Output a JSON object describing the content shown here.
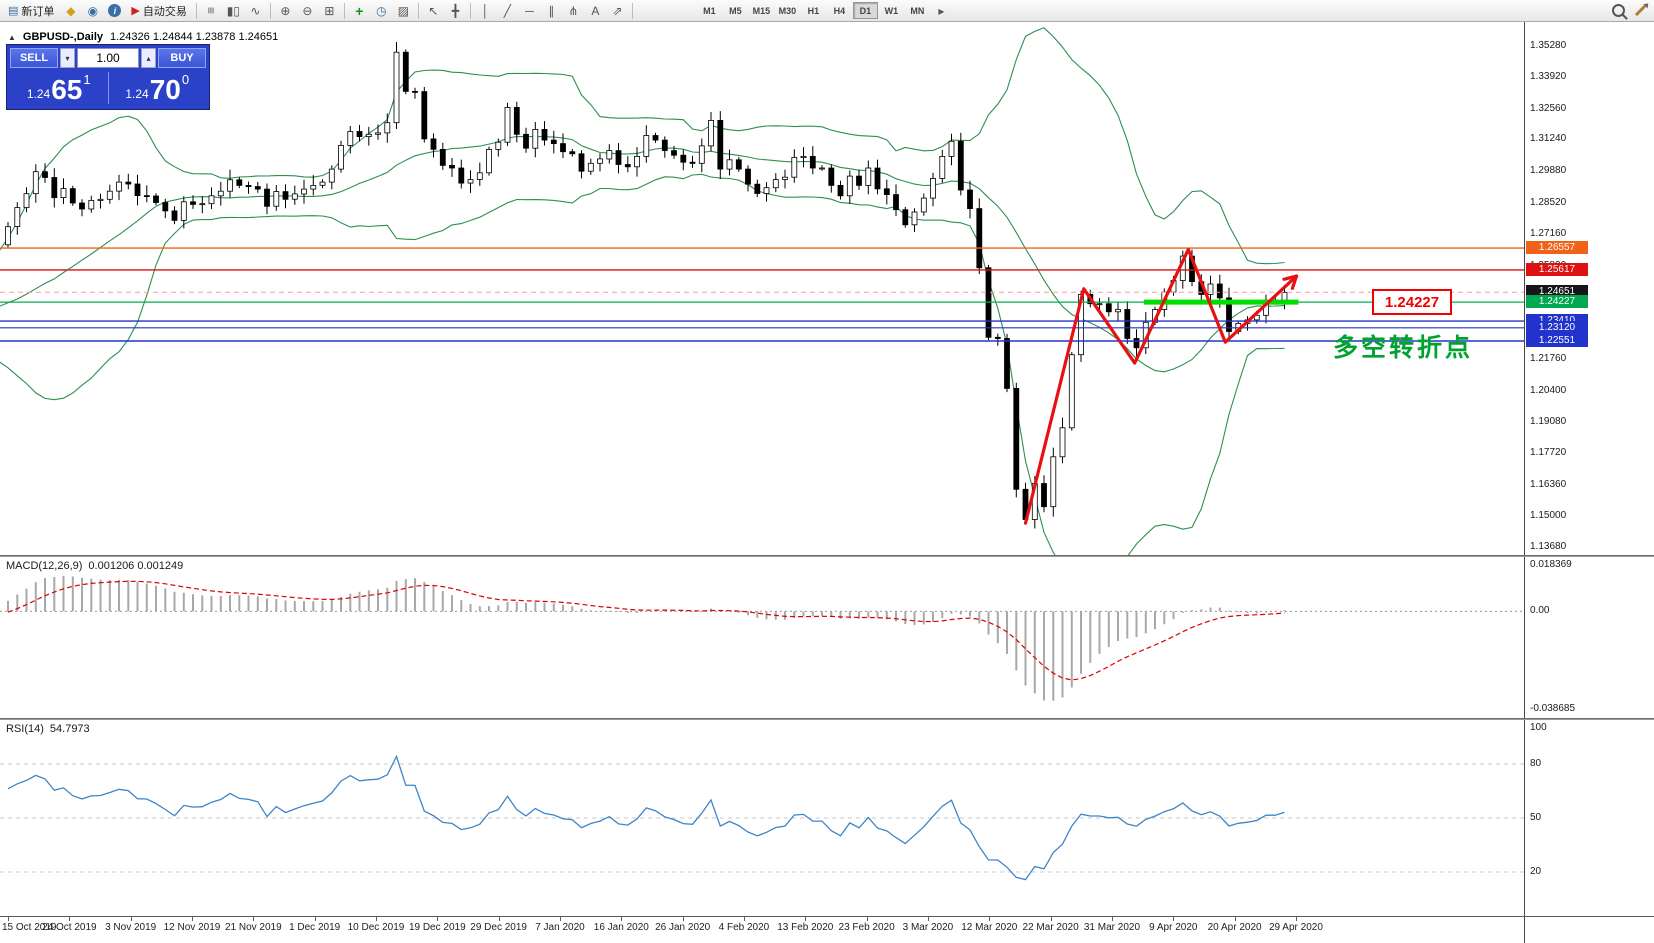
{
  "toolbar": {
    "new_order_label": "新订单",
    "auto_trading_label": "自动交易",
    "timeframes": [
      "M1",
      "M5",
      "M15",
      "M30",
      "H1",
      "H4",
      "D1",
      "W1",
      "MN"
    ],
    "active_timeframe": "D1",
    "icons": {
      "new_order": "▤",
      "market": "◆",
      "profile": "◉",
      "info": "i",
      "autotrade": "▶",
      "bars": "≡",
      "candles": "▮▯",
      "line": "∿",
      "zoom_in": "⊕",
      "zoom_out": "⊖",
      "tile": "⊞",
      "indicators": "+",
      "periods": "◷",
      "templates": "▨",
      "cursor": "↖",
      "crosshair": "╋",
      "vline": "│",
      "trendline": "╱",
      "hline": "─",
      "channel": "∥",
      "pitchfork": "⋔",
      "text": "A",
      "arrows": "⇗",
      "overflow": "▸",
      "collapse": "▲"
    }
  },
  "chart": {
    "symbol_label": "GBPUSD-,Daily",
    "ohlc": "1.24326 1.24844 1.23878 1.24651"
  },
  "trade_panel": {
    "sell_label": "SELL",
    "buy_label": "BUY",
    "volume": "1.00",
    "step_down": "▾",
    "step_up": "▴",
    "bid": {
      "prefix": "1.24",
      "big": "65",
      "sup": "1"
    },
    "ask": {
      "prefix": "1.24",
      "big": "70",
      "sup": "0"
    }
  },
  "price_axis": {
    "ticks": [
      "1.35280",
      "1.33920",
      "1.32560",
      "1.31240",
      "1.29880",
      "1.28520",
      "1.27160",
      "1.25800",
      "1.24440",
      "1.23080",
      "1.21760",
      "1.20400",
      "1.19080",
      "1.17720",
      "1.16360",
      "1.15000",
      "1.13680"
    ],
    "tags": [
      {
        "value": "1.26557",
        "price": 1.26557,
        "color": "#f06218"
      },
      {
        "value": "1.25617",
        "price": 1.25617,
        "color": "#dd1111"
      },
      {
        "value": "1.24651",
        "price": 1.24651,
        "color": "#15151a"
      },
      {
        "value": "1.24227",
        "price": 1.24227,
        "color": "#00a84f"
      },
      {
        "value": "1.23410",
        "price": 1.2341,
        "color": "#2233cc"
      },
      {
        "value": "1.23120",
        "price": 1.2312,
        "color": "#2233cc"
      },
      {
        "value": "1.22551",
        "price": 1.22551,
        "color": "#2233cc"
      }
    ]
  },
  "horizontal_lines": [
    {
      "price": 1.26557,
      "color": "#f06218",
      "width": 1.4
    },
    {
      "price": 1.25617,
      "color": "#dd1111",
      "width": 1.4
    },
    {
      "price": 1.24651,
      "color": "#ff9c9c",
      "width": 1,
      "dash": "5 4"
    },
    {
      "price": 1.24227,
      "color": "#00b050",
      "width": 1.2
    },
    {
      "price": 1.2341,
      "color": "#2233cc",
      "width": 1.4
    },
    {
      "price": 1.2312,
      "color": "#2233cc",
      "width": 1.2
    },
    {
      "price": 1.22551,
      "color": "#2233cc",
      "width": 1.4
    }
  ],
  "annotations": {
    "price_callout_text": "1.24227",
    "turning_point_text": "多空转折点",
    "zigzag": {
      "color": "#e81010",
      "points": [
        [
          130,
          1.147
        ],
        [
          136.3,
          1.248
        ],
        [
          141.8,
          1.216
        ],
        [
          147.6,
          1.265
        ],
        [
          151.6,
          1.225
        ],
        [
          159.3,
          1.2535
        ]
      ]
    },
    "bold_level": {
      "color": "#00dd00",
      "price": 1.24227,
      "i1": 142.8,
      "i2": 159.5
    }
  },
  "macd": {
    "name": "MACD(12,26,9)",
    "values": "0.001206 0.001249",
    "axis": [
      {
        "label": "0.018369",
        "value": 0.018369
      },
      {
        "label": "0.00",
        "value": 0
      },
      {
        "label": "-0.038685",
        "value": -0.038685
      }
    ]
  },
  "rsi": {
    "name": "RSI(14)",
    "value": "54.7973",
    "axis": [
      {
        "label": "100",
        "value": 100
      },
      {
        "label": "80",
        "value": 80
      },
      {
        "label": "50",
        "value": 50
      },
      {
        "label": "20",
        "value": 20
      }
    ]
  },
  "date_axis": [
    "15 Oct 2019",
    "24 Oct 2019",
    "3 Nov 2019",
    "12 Nov 2019",
    "21 Nov 2019",
    "1 Dec 2019",
    "10 Dec 2019",
    "19 Dec 2019",
    "29 Dec 2019",
    "7 Jan 2020",
    "16 Jan 2020",
    "26 Jan 2020",
    "4 Feb 2020",
    "13 Feb 2020",
    "23 Feb 2020",
    "3 Mar 2020",
    "12 Mar 2020",
    "22 Mar 2020",
    "31 Mar 2020",
    "9 Apr 2020",
    "20 Apr 2020",
    "29 Apr 2020"
  ],
  "chart_data": {
    "type": "candlestick",
    "symbol": "GBPUSD-",
    "period": "Daily",
    "visible_start_index": 20,
    "price_range_top": 1.363,
    "price_range_bottom": 1.1333,
    "closes": [
      1.2425,
      1.2499,
      1.247,
      1.2524,
      1.25,
      1.2481,
      1.2364,
      1.232,
      1.2289,
      1.2331,
      1.2296,
      1.233,
      1.2422,
      1.2331,
      1.2292,
      1.221,
      1.2265,
      1.244,
      1.2615,
      1.267,
      1.2748,
      1.283,
      1.289,
      1.2985,
      1.296,
      1.2873,
      1.2912,
      1.285,
      1.2824,
      1.2861,
      1.2866,
      1.2901,
      1.294,
      1.2932,
      1.2882,
      1.288,
      1.2852,
      1.2816,
      1.2775,
      1.2855,
      1.2844,
      1.2847,
      1.2881,
      1.2901,
      1.295,
      1.2926,
      1.2921,
      1.291,
      1.2836,
      1.2899,
      1.2866,
      1.2889,
      1.291,
      1.2926,
      1.294,
      1.2996,
      1.3098,
      1.3158,
      1.3136,
      1.3146,
      1.3152,
      1.3196,
      1.35,
      1.3331,
      1.333,
      1.3126,
      1.3081,
      1.3012,
      1.3001,
      1.2936,
      1.2951,
      1.298,
      1.3081,
      1.3112,
      1.3262,
      1.3146,
      1.3086,
      1.3167,
      1.3121,
      1.3106,
      1.3071,
      1.3062,
      1.2987,
      1.3021,
      1.304,
      1.3076,
      1.3016,
      1.3006,
      1.3051,
      1.3141,
      1.3121,
      1.3076,
      1.3056,
      1.3026,
      1.3021,
      1.3096,
      1.3206,
      1.2996,
      1.3036,
      1.2996,
      1.2931,
      1.2891,
      1.2916,
      1.2951,
      1.2961,
      1.3046,
      1.3051,
      1.3001,
      1.3001,
      1.2926,
      1.2881,
      1.2966,
      1.2926,
      1.3001,
      1.2911,
      1.2886,
      1.2821,
      1.2756,
      1.2811,
      1.2871,
      1.2956,
      1.3051,
      1.3116,
      1.2906,
      1.2826,
      1.2571,
      1.2271,
      1.2266,
      1.2051,
      1.1616,
      1.1486,
      1.1641,
      1.1541,
      1.1756,
      1.1881,
      1.2196,
      1.2456,
      1.2416,
      1.2416,
      1.2381,
      1.2391,
      1.2266,
      1.2226,
      1.2336,
      1.2391,
      1.2466,
      1.2516,
      1.2621,
      1.2511,
      1.2456,
      1.2501,
      1.2441,
      1.2296,
      1.2331,
      1.2346,
      1.2366,
      1.2431,
      1.2431,
      1.24651
    ],
    "x_axis_labels": [
      "15 Oct 2019",
      "24 Oct 2019",
      "3 Nov 2019",
      "12 Nov 2019",
      "21 Nov 2019",
      "1 Dec 2019",
      "10 Dec 2019",
      "19 Dec 2019",
      "29 Dec 2019",
      "7 Jan 2020",
      "16 Jan 2020",
      "26 Jan 2020",
      "4 Feb 2020",
      "13 Feb 2020",
      "23 Feb 2020",
      "3 Mar 2020",
      "12 Mar 2020",
      "22 Mar 2020",
      "31 Mar 2020",
      "9 Apr 2020",
      "20 Apr 2020",
      "29 Apr 2020"
    ],
    "indicators": {
      "bollinger": {
        "period": 20,
        "deviation": 2
      },
      "macd": {
        "fast": 12,
        "slow": 26,
        "signal": 9,
        "current_main": "0.001206",
        "current_signal": "0.001249",
        "axis_max": "0.018369",
        "axis_min": "-0.038685"
      },
      "rsi": {
        "period": 14,
        "current": "54.7973"
      }
    },
    "colors": {
      "bollinger": "#2e8f4e",
      "candle_up": "#ffffff",
      "candle_down": "#000000",
      "macd_hist": "#a8a8a8",
      "macd_signal": "#dd0000",
      "rsi_line": "#3d85c8"
    }
  }
}
